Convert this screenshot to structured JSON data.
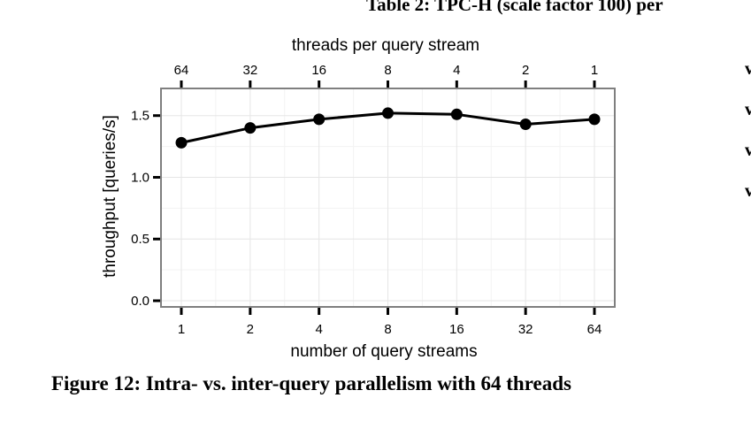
{
  "page": {
    "table_heading": "Table 2: TPC-H (scale factor 100) per",
    "side_marks": [
      "v",
      "v",
      "v",
      "v"
    ],
    "caption": "Figure 12: Intra- vs. inter-query parallelism with 64 threads"
  },
  "chart_data": {
    "type": "line",
    "xlabel": "number of query streams",
    "top_xlabel": "threads per query stream",
    "ylabel": "throughput [queries/s]",
    "categories": [
      "1",
      "2",
      "4",
      "8",
      "16",
      "32",
      "64"
    ],
    "top_categories": [
      "64",
      "32",
      "16",
      "8",
      "4",
      "2",
      "1"
    ],
    "values": [
      1.28,
      1.4,
      1.47,
      1.52,
      1.51,
      1.43,
      1.47
    ],
    "yticks": [
      0.0,
      0.5,
      1.0,
      1.5
    ],
    "ytick_labels": [
      "0.0",
      "0.5",
      "1.0",
      "1.5"
    ],
    "ylim": [
      -0.05,
      1.72
    ],
    "grid": true,
    "colors": {
      "line": "#000000",
      "grid_major": "#e6e6e6",
      "grid_minor": "#f3f3f3",
      "frame": "#7f7f7f"
    }
  }
}
